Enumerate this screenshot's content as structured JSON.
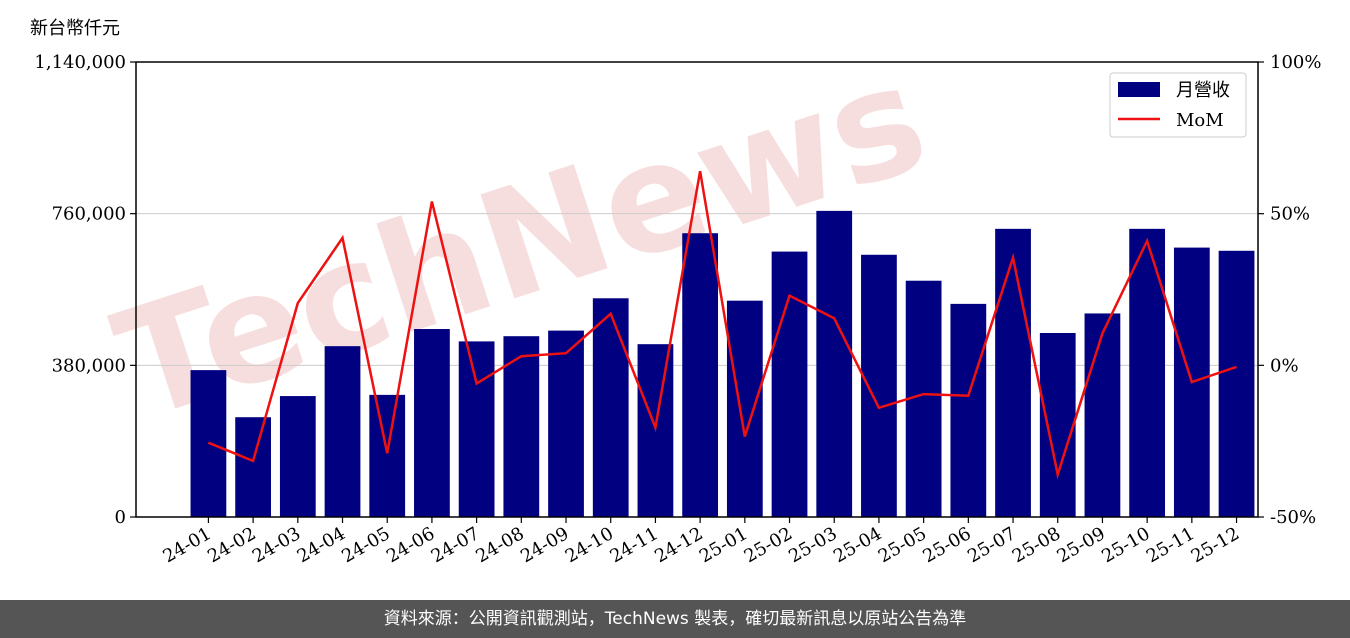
{
  "unit_label": "新台幣仟元",
  "watermark_text": "TechNews",
  "footer_text": "資料來源：公開資訊觀測站，TechNews 製表，確切最新訊息以原站公告為準",
  "colors": {
    "bar": "#000080",
    "line": "#ee1111",
    "grid": "#cccccc",
    "watermark": "#f2c4c4",
    "footer_bg": "#555555"
  },
  "chart_data": {
    "type": "bar",
    "categories": [
      "24-01",
      "24-02",
      "24-03",
      "24-04",
      "24-05",
      "24-06",
      "24-07",
      "24-08",
      "24-09",
      "24-10",
      "24-11",
      "24-12",
      "25-01",
      "25-02",
      "25-03",
      "25-04",
      "25-05",
      "25-06",
      "25-07",
      "25-08",
      "25-09",
      "25-10",
      "25-11",
      "25-12"
    ],
    "series": [
      {
        "name": "月營收",
        "type": "bar",
        "axis": "left",
        "values": [
          368000,
          250000,
          303000,
          428000,
          306000,
          471000,
          440000,
          453000,
          467000,
          548000,
          433000,
          711000,
          542000,
          665000,
          767000,
          657000,
          592000,
          534000,
          722000,
          461000,
          510000,
          722000,
          675000,
          667000
        ]
      },
      {
        "name": "MoM",
        "type": "line",
        "axis": "right",
        "values": [
          -25.5,
          -31.5,
          20.5,
          42,
          -29,
          54,
          -6,
          3,
          4,
          17,
          -20.5,
          64,
          -23.5,
          23,
          15.5,
          -14,
          -9.5,
          -10,
          35.5,
          -36,
          10.5,
          41,
          -5.5,
          -0.5
        ]
      }
    ],
    "y_left": {
      "ylim": [
        0,
        1140000
      ],
      "ticks": [
        "0",
        "380,000",
        "760,000",
        "1,140,000"
      ],
      "tick_values": [
        0,
        380000,
        760000,
        1140000
      ]
    },
    "y_right": {
      "ylim": [
        -50,
        100
      ],
      "ticks": [
        "-50%",
        "0%",
        "50%",
        "100%"
      ],
      "tick_values": [
        -50,
        0,
        50,
        100
      ]
    },
    "grid": "horizontal",
    "legend": {
      "placement": "top-right",
      "entries": [
        "月營收",
        "MoM"
      ]
    }
  }
}
